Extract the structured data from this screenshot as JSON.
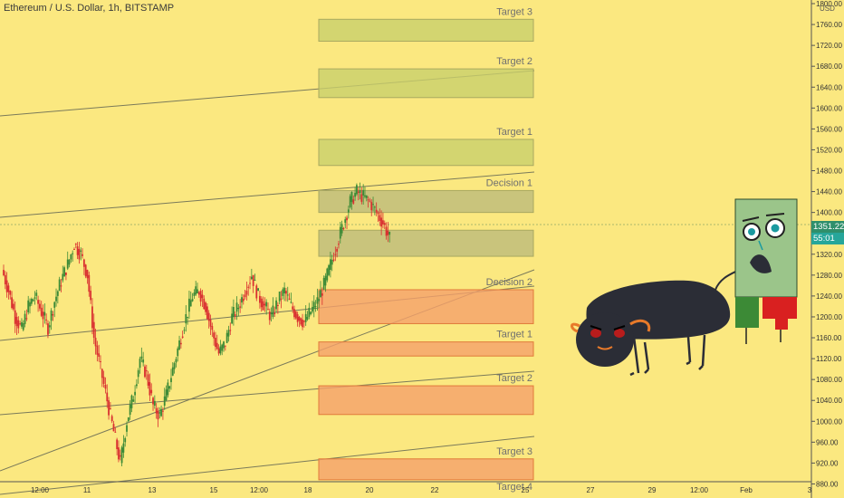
{
  "header": {
    "symbol_title": "Ethereum / U.S. Dollar, 1h, BITSTAMP"
  },
  "price_axis": {
    "currency": "USD",
    "last_price": "1351.22",
    "countdown": "55:01",
    "last_price_color": "#2f8f6b",
    "countdown_color": "#26a69a"
  },
  "colors": {
    "background": "#FBE880",
    "target_box": "#C9CF6B",
    "decision_box": "#BDBA7A",
    "support_box": "#F5A06A",
    "bull_body": "#2b2d36",
    "up_candle": "#3c8a36",
    "down_candle": "#d92020",
    "mascot_green": "#9bc58a"
  },
  "illustration": {
    "bull": "bull-illustration",
    "mascot": "candlestick-mascot-illustration"
  },
  "chart_data": {
    "type": "candlestick",
    "title": "Ethereum / U.S. Dollar, 1h, BITSTAMP",
    "ylim": [
      860,
      1800
    ],
    "y_ticks": [
      880,
      920,
      960,
      1000,
      1040,
      1080,
      1120,
      1160,
      1200,
      1240,
      1280,
      1320,
      1360,
      1400,
      1440,
      1480,
      1520,
      1560,
      1600,
      1640,
      1680,
      1720,
      1760,
      1800
    ],
    "x_ticks": [
      "12:00",
      "11",
      "13",
      "15",
      "12:00",
      "18",
      "20",
      "22",
      "25",
      "27",
      "29",
      "12:00",
      "Feb",
      "3"
    ],
    "grid": false,
    "zones": [
      {
        "label": "Target 3",
        "kind": "target",
        "low": 1728,
        "high": 1770
      },
      {
        "label": "Target 2",
        "kind": "target",
        "low": 1620,
        "high": 1675
      },
      {
        "label": "Target 1",
        "kind": "target",
        "low": 1490,
        "high": 1540
      },
      {
        "label": "Decision 1",
        "kind": "decision",
        "low": 1400,
        "high": 1442
      },
      {
        "label": "",
        "kind": "decision",
        "low": 1316,
        "high": 1366
      },
      {
        "label": "Decision 2",
        "kind": "support",
        "low": 1187,
        "high": 1252
      },
      {
        "label": "Target 1",
        "kind": "support",
        "low": 1125,
        "high": 1152
      },
      {
        "label": "Target 2",
        "kind": "support",
        "low": 1013,
        "high": 1068
      },
      {
        "label": "Target 3",
        "kind": "support",
        "low": 888,
        "high": 928
      },
      {
        "label": "Target 4",
        "kind": "none",
        "low": 860,
        "high": 860
      }
    ],
    "last_price": 1351.22,
    "price_path": [
      1290,
      1250,
      1200,
      1175,
      1220,
      1240,
      1210,
      1180,
      1230,
      1270,
      1300,
      1340,
      1320,
      1280,
      1160,
      1100,
      1040,
      980,
      920,
      1000,
      1050,
      1120,
      1090,
      1030,
      1010,
      1050,
      1100,
      1150,
      1200,
      1240,
      1250,
      1220,
      1170,
      1130,
      1150,
      1200,
      1220,
      1250,
      1280,
      1240,
      1220,
      1200,
      1230,
      1250,
      1220,
      1200,
      1190,
      1210,
      1230,
      1260,
      1300,
      1340,
      1380,
      1420,
      1440,
      1430,
      1420,
      1400,
      1380,
      1350
    ]
  }
}
